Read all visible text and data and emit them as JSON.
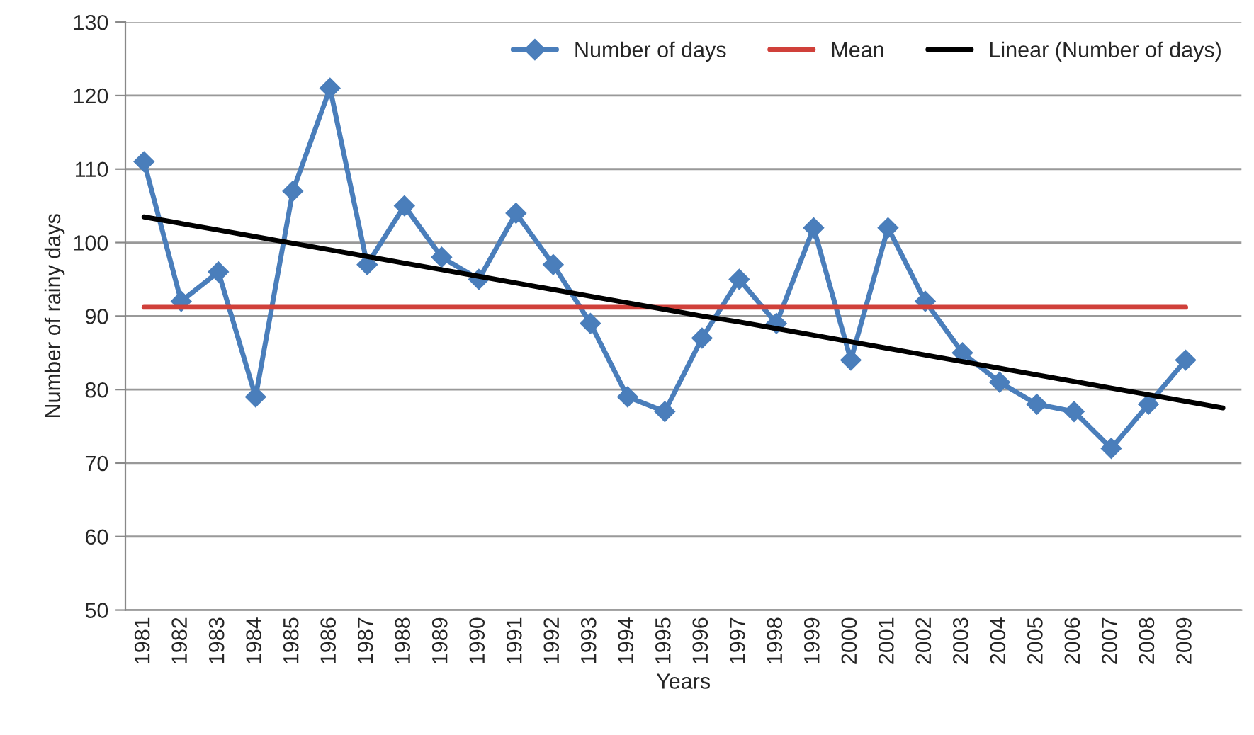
{
  "chart_data": {
    "type": "line",
    "xlabel": "Years",
    "ylabel": "Number of rainy days",
    "categories": [
      "1981",
      "1982",
      "1983",
      "1984",
      "1985",
      "1986",
      "1987",
      "1988",
      "1989",
      "1990",
      "1991",
      "1992",
      "1993",
      "1994",
      "1995",
      "1996",
      "1997",
      "1998",
      "1999",
      "2000",
      "2001",
      "2002",
      "2003",
      "2004",
      "2005",
      "2006",
      "2007",
      "2008",
      "2009",
      null
    ],
    "series": [
      {
        "name": "Number of days",
        "color": "#4a7ebb",
        "marker": "diamond",
        "values": [
          111,
          92,
          96,
          79,
          107,
          121,
          97,
          105,
          98,
          95,
          104,
          97,
          89,
          79,
          77,
          87,
          95,
          89,
          102,
          84,
          102,
          92,
          85,
          81,
          78,
          77,
          72,
          78,
          84,
          null
        ]
      },
      {
        "name": "Mean",
        "color": "#d0403a",
        "marker": "none",
        "values": [
          91.2,
          91.2,
          91.2,
          91.2,
          91.2,
          91.2,
          91.2,
          91.2,
          91.2,
          91.2,
          91.2,
          91.2,
          91.2,
          91.2,
          91.2,
          91.2,
          91.2,
          91.2,
          91.2,
          91.2,
          91.2,
          91.2,
          91.2,
          91.2,
          91.2,
          91.2,
          91.2,
          91.2,
          91.2,
          null
        ]
      },
      {
        "name": "Linear (Number of days)",
        "color": "#000000",
        "marker": "none",
        "values": [
          103.5,
          102.6,
          101.7,
          100.8,
          99.9,
          99.0,
          98.1,
          97.2,
          96.3,
          95.4,
          94.5,
          93.6,
          92.7,
          91.8,
          90.9,
          90.0,
          89.2,
          88.3,
          87.4,
          86.5,
          85.6,
          84.7,
          83.8,
          82.9,
          82.0,
          81.1,
          80.2,
          79.3,
          78.4,
          77.5
        ]
      }
    ],
    "ylim": [
      50,
      130
    ],
    "yticks": [
      50,
      60,
      70,
      80,
      90,
      100,
      110,
      120,
      130
    ],
    "grid": "y",
    "legend": "top right"
  }
}
